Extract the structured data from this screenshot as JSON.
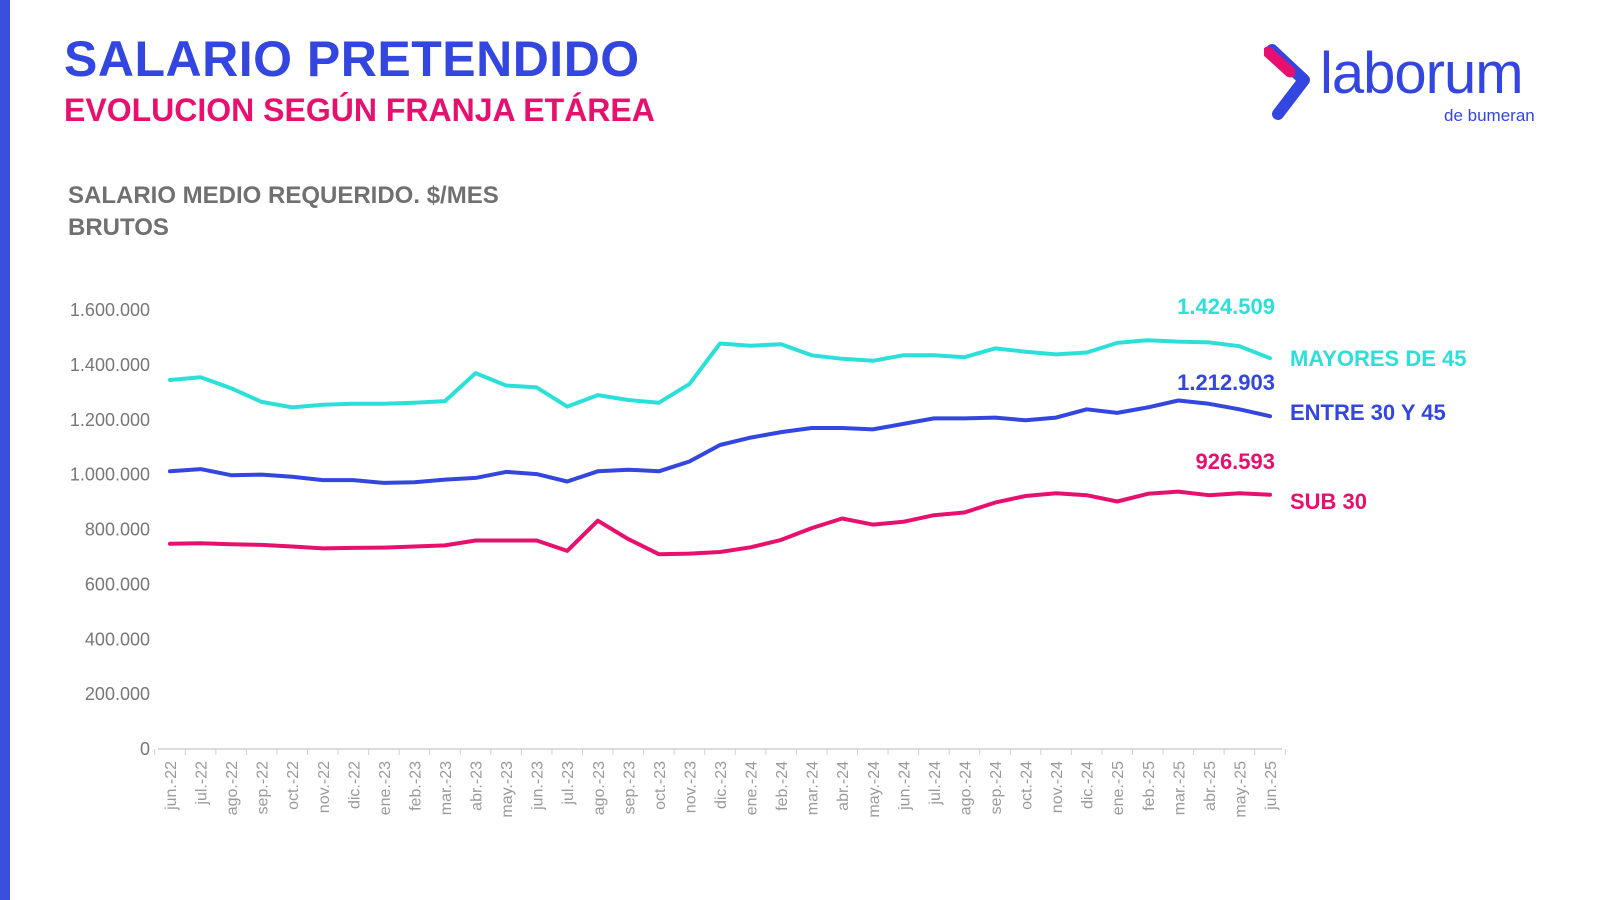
{
  "header": {
    "title": "SALARIO PRETENDIDO",
    "subtitle": "EVOLUCION SEGÚN FRANJA ETÁREA"
  },
  "brand": {
    "logo_text": "laborum",
    "logo_subtext": "de bumeran",
    "colors": {
      "blue": "#3346e0",
      "magenta": "#e8106e",
      "cyan": "#2be0d8"
    }
  },
  "chart_data": {
    "type": "line",
    "title": "SALARIO MEDIO REQUERIDO. $/MES BRUTOS",
    "title_lines": [
      "SALARIO MEDIO REQUERIDO. $/MES",
      "BRUTOS"
    ],
    "xlabel": "",
    "ylabel": "",
    "ylim": [
      0,
      1600000
    ],
    "yticks": [
      0,
      200000,
      400000,
      600000,
      800000,
      1000000,
      1200000,
      1400000,
      1600000
    ],
    "ytick_labels": [
      "0",
      "200.000",
      "400.000",
      "600.000",
      "800.000",
      "1.000.000",
      "1.200.000",
      "1.400.000",
      "1.600.000"
    ],
    "grid": false,
    "legend": "right (labels at line ends)",
    "x": [
      "jun.-22",
      "jul.-22",
      "ago.-22",
      "sep.-22",
      "oct.-22",
      "nov.-22",
      "dic.-22",
      "ene.-23",
      "feb.-23",
      "mar.-23",
      "abr.-23",
      "may.-23",
      "jun.-23",
      "jul.-23",
      "ago.-23",
      "sep.-23",
      "oct.-23",
      "nov.-23",
      "dic.-23",
      "ene.-24",
      "feb.-24",
      "mar.-24",
      "abr.-24",
      "may.-24",
      "jun.-24",
      "jul.-24",
      "ago.-24",
      "sep.-24",
      "oct.-24",
      "nov.-24",
      "dic.-24",
      "ene.-25",
      "feb.-25",
      "mar.-25",
      "abr.-25",
      "may.-25",
      "jun.-25"
    ],
    "series": [
      {
        "name": "MAYORES DE 45",
        "color": "#2be0d8",
        "last_value_label": "1.424.509",
        "values": [
          1345000,
          1355000,
          1315000,
          1265000,
          1245000,
          1255000,
          1258000,
          1258000,
          1262000,
          1268000,
          1370000,
          1325000,
          1318000,
          1248000,
          1290000,
          1272000,
          1262000,
          1330000,
          1478000,
          1470000,
          1475000,
          1435000,
          1422000,
          1415000,
          1435000,
          1435000,
          1428000,
          1460000,
          1448000,
          1438000,
          1445000,
          1480000,
          1490000,
          1485000,
          1482000,
          1468000,
          1424509
        ]
      },
      {
        "name": "ENTRE 30 Y 45",
        "color": "#3346e0",
        "last_value_label": "1.212.903",
        "values": [
          1012000,
          1020000,
          998000,
          1000000,
          992000,
          980000,
          980000,
          970000,
          972000,
          982000,
          988000,
          1010000,
          1002000,
          975000,
          1012000,
          1018000,
          1012000,
          1048000,
          1108000,
          1135000,
          1155000,
          1170000,
          1170000,
          1165000,
          1185000,
          1205000,
          1205000,
          1208000,
          1198000,
          1208000,
          1238000,
          1225000,
          1245000,
          1270000,
          1258000,
          1238000,
          1212903
        ]
      },
      {
        "name": "SUB 30",
        "color": "#e8106e",
        "last_value_label": "926.593",
        "values": [
          748000,
          750000,
          746000,
          744000,
          738000,
          731000,
          733000,
          734000,
          738000,
          742000,
          760000,
          760000,
          760000,
          722000,
          832000,
          765000,
          710000,
          712000,
          718000,
          735000,
          762000,
          805000,
          840000,
          818000,
          828000,
          852000,
          862000,
          898000,
          922000,
          932000,
          925000,
          902000,
          930000,
          938000,
          925000,
          932000,
          926593
        ]
      }
    ]
  }
}
